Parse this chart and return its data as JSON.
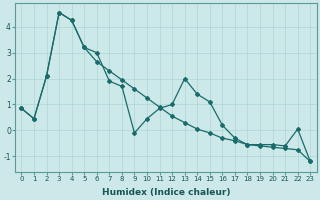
{
  "xlabel": "Humidex (Indice chaleur)",
  "background_color": "#cce8e8",
  "line_color": "#1a6b6b",
  "grid_color": "#afd4d4",
  "xlim": [
    -0.5,
    23.5
  ],
  "ylim": [
    -1.6,
    4.9
  ],
  "yticks": [
    -1,
    0,
    1,
    2,
    3,
    4
  ],
  "xticks": [
    0,
    1,
    2,
    3,
    4,
    5,
    6,
    7,
    8,
    9,
    10,
    11,
    12,
    13,
    14,
    15,
    16,
    17,
    18,
    19,
    20,
    21,
    22,
    23
  ],
  "line1_x": [
    0,
    1,
    2,
    3,
    4,
    5,
    6,
    7,
    8,
    9,
    10,
    11,
    12,
    13,
    14,
    15,
    16,
    17,
    18,
    19,
    20,
    21,
    22,
    23
  ],
  "line1_y": [
    0.85,
    0.45,
    2.1,
    4.55,
    4.25,
    3.2,
    3.0,
    1.9,
    1.7,
    -0.1,
    0.45,
    0.85,
    1.0,
    2.0,
    1.4,
    1.1,
    0.2,
    -0.3,
    -0.55,
    -0.55,
    -0.55,
    -0.6,
    0.05,
    -1.2
  ],
  "line2_x": [
    0,
    1,
    2,
    3,
    4,
    5,
    6,
    7,
    8,
    9,
    10,
    11,
    12,
    13,
    14,
    15,
    16,
    17,
    18,
    19,
    20,
    21,
    22,
    23
  ],
  "line2_y": [
    0.85,
    0.45,
    2.1,
    4.55,
    4.25,
    3.2,
    2.65,
    2.3,
    1.95,
    1.6,
    1.25,
    0.9,
    0.55,
    0.3,
    0.05,
    -0.1,
    -0.3,
    -0.4,
    -0.55,
    -0.6,
    -0.65,
    -0.7,
    -0.75,
    -1.2
  ],
  "markersize": 2.0,
  "linewidth": 0.9
}
